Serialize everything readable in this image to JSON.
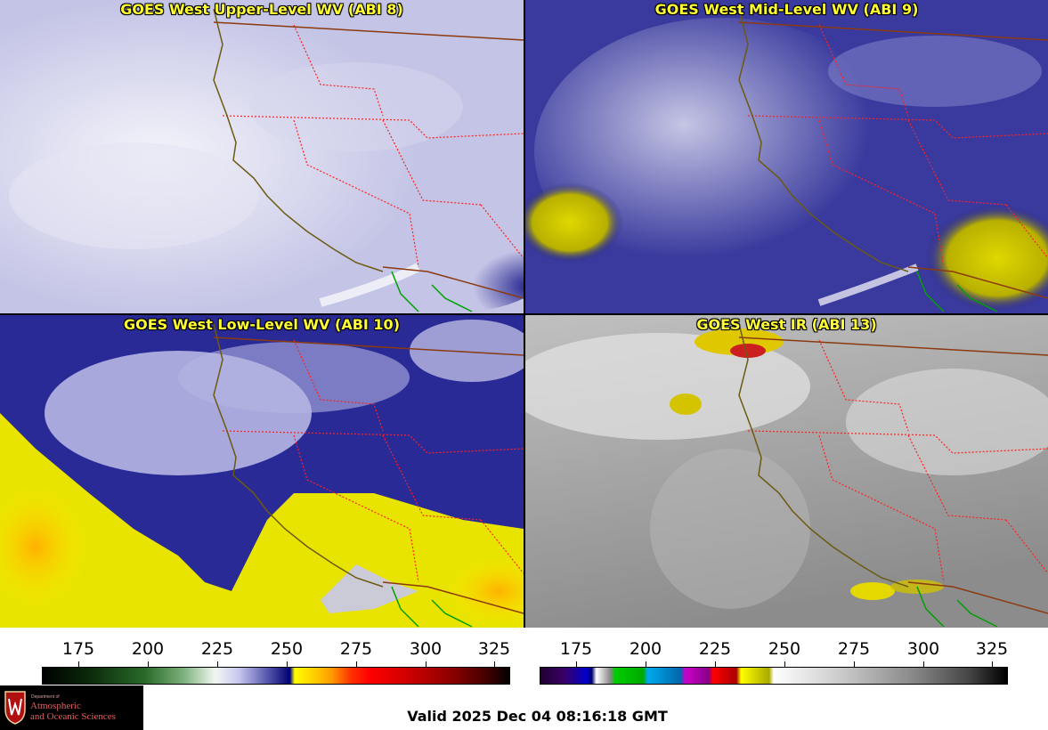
{
  "panels": {
    "upper": {
      "title": "GOES West Upper-Level WV (ABI 8)"
    },
    "mid": {
      "title": "GOES West Mid-Level WV (ABI 9)"
    },
    "low": {
      "title": "GOES West Low-Level WV (ABI 10)"
    },
    "ir": {
      "title": "GOES West IR (ABI 13)"
    }
  },
  "scales": {
    "wv": {
      "ticks": [
        "175",
        "200",
        "225",
        "250",
        "275",
        "300",
        "325"
      ]
    },
    "ir": {
      "ticks": [
        "175",
        "200",
        "225",
        "250",
        "275",
        "300",
        "325"
      ]
    }
  },
  "logo": {
    "department": "Department of",
    "line1": "Atmospheric",
    "line2": "and Oceanic Sciences"
  },
  "valid_time": "Valid 2025 Dec 04 08:16:18 GMT",
  "colors": {
    "title_text": "#ffff33",
    "coastline": "#6b5a10",
    "state_border": "#ff2020",
    "mexico_coast": "#00a000"
  }
}
